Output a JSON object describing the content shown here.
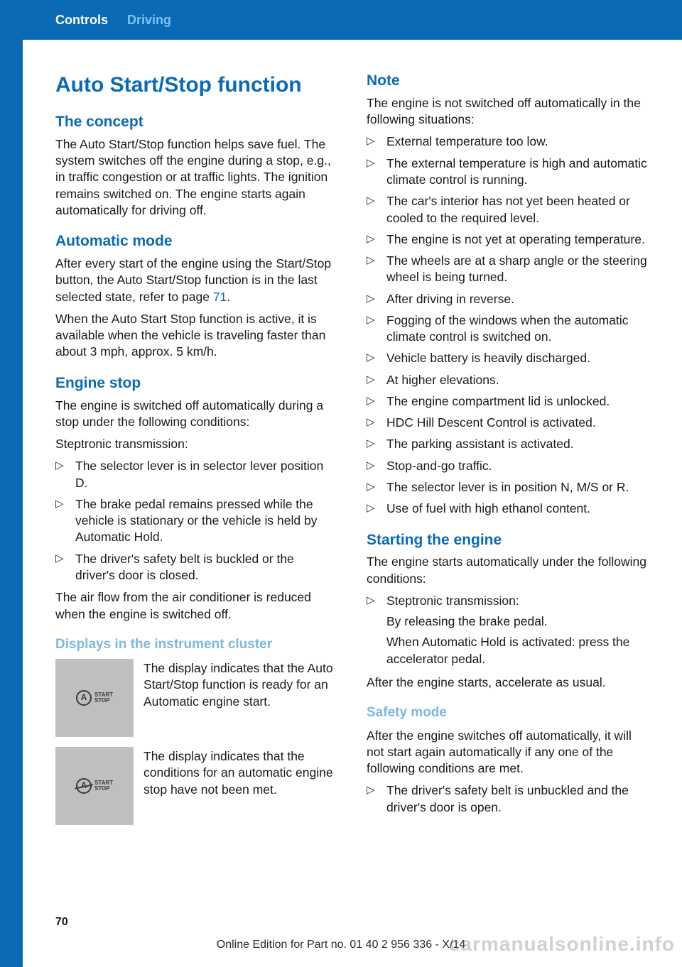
{
  "breadcrumb": {
    "section": "Controls",
    "page": "Driving"
  },
  "colors": {
    "brand": "#0a6ab5",
    "sub": "#7fb8e0",
    "crumb_light": "#7fc3f3",
    "icon_bg": "#bfbfbf",
    "text": "#1a1a1a",
    "watermark": "rgba(120,120,120,0.35)"
  },
  "title": "Auto Start/Stop function",
  "concept": {
    "h": "The concept",
    "p": "The Auto Start/Stop function helps save fuel. The system switches off the engine during a stop, e.g., in traffic congestion or at traffic lights. The ignition remains switched on. The engine starts again automatically for driving off."
  },
  "auto_mode": {
    "h": "Automatic mode",
    "p1a": "After every start of the engine using the Start/Stop button, the Auto Start/Stop function is in the last selected state, refer to page ",
    "link": "71",
    "p1b": ".",
    "p2": "When the Auto Start Stop function is active, it is available when the vehicle is traveling faster than about 3 mph, approx. 5 km/h."
  },
  "engine_stop": {
    "h": "Engine stop",
    "intro": "The engine is switched off automatically during a stop under the following conditions:",
    "lead": "Steptronic transmission:",
    "items": [
      "The selector lever is in selector lever position D.",
      "The brake pedal remains pressed while the vehicle is stationary or the vehicle is held by Automatic Hold.",
      "The driver's safety belt is buckled or the driver's door is closed."
    ],
    "after": "The air flow from the air conditioner is reduced when the engine is switched off."
  },
  "displays": {
    "h": "Displays in the instrument cluster",
    "row1": {
      "glyph": "A",
      "glyph_lines": [
        "START",
        "STOP"
      ],
      "text": "The display indicates that the Auto Start/Stop function is ready for an Automatic engine start."
    },
    "row2": {
      "glyph": "A",
      "glyph_lines": [
        "START",
        "STOP"
      ],
      "text": "The display indicates that the conditions for an automatic engine stop have not been met."
    }
  },
  "note": {
    "h": "Note",
    "intro": "The engine is not switched off automatically in the following situations:",
    "items": [
      "External temperature too low.",
      "The external temperature is high and automatic climate control is running.",
      "The car's interior has not yet been heated or cooled to the required level.",
      "The engine is not yet at operating temperature.",
      "The wheels are at a sharp angle or the steering wheel is being turned.",
      "After driving in reverse.",
      "Fogging of the windows when the automatic climate control is switched on.",
      "Vehicle battery is heavily discharged.",
      "At higher elevations.",
      "The engine compartment lid is unlocked.",
      "HDC Hill Descent Control is activated.",
      "The parking assistant is activated.",
      "Stop-and-go traffic.",
      "The selector lever is in position N, M/S or R.",
      "Use of fuel with high ethanol content."
    ]
  },
  "starting": {
    "h": "Starting the engine",
    "intro": "The engine starts automatically under the following conditions:",
    "item_lead": "Steptronic transmission:",
    "item_p1": "By releasing the brake pedal.",
    "item_p2": "When Automatic Hold is activated: press the accelerator pedal.",
    "after": "After the engine starts, accelerate as usual."
  },
  "safety": {
    "h": "Safety mode",
    "intro": "After the engine switches off automatically, it will not start again automatically if any one of the following conditions are met.",
    "items": [
      "The driver's safety belt is unbuckled and the driver's door is open."
    ]
  },
  "page_number": "70",
  "footer": "Online Edition for Part no. 01 40 2 956 336 - X/14",
  "watermark": "carmanualsonline.info"
}
